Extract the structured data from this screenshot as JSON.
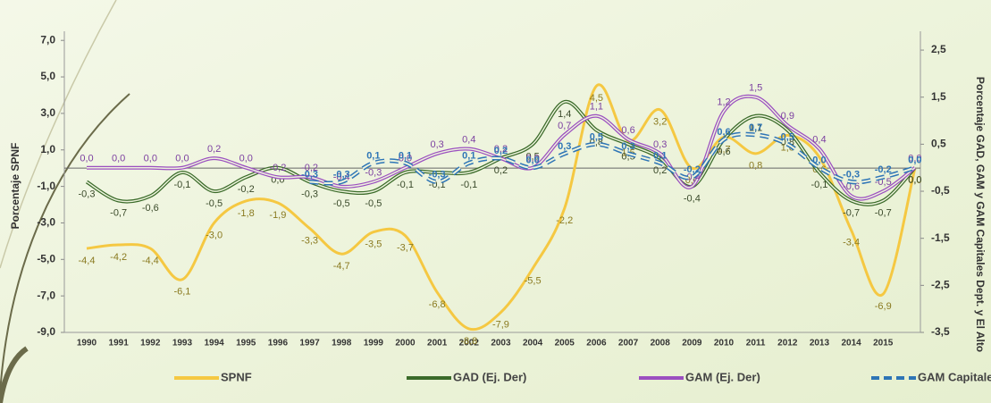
{
  "chart_data": {
    "type": "line",
    "y_label": "Porcentaje SPNF",
    "y2_label": "Porcentaje GAD, GAM y GAM  Capitales Dept. y El Alto",
    "categories": [
      "1990",
      "1991",
      "1992",
      "1993",
      "1994",
      "1995",
      "1996",
      "1997",
      "1998",
      "1999",
      "2000",
      "2001",
      "2002",
      "2003",
      "2004",
      "2005",
      "2006",
      "2007",
      "2008",
      "2009",
      "2010",
      "2011",
      "2012",
      "2013",
      "2014",
      "2015",
      null
    ],
    "ylim": [
      -9,
      7.5
    ],
    "yticks": [
      {
        "value": -9,
        "label": "-9,0"
      },
      {
        "value": -7,
        "label": "-7,0"
      },
      {
        "value": -5,
        "label": "-5,0"
      },
      {
        "value": -3,
        "label": "-3,0"
      },
      {
        "value": -1,
        "label": "-1,0"
      },
      {
        "value": 1,
        "label": "1,0"
      },
      {
        "value": 3,
        "label": "3,0"
      },
      {
        "value": 5,
        "label": "5,0"
      },
      {
        "value": 7,
        "label": "7,0"
      }
    ],
    "y2lim": [
      -3.5,
      2.9
    ],
    "y2ticks": [
      {
        "value": -3.5,
        "label": "-3,5"
      },
      {
        "value": -2.5,
        "label": "-2,5"
      },
      {
        "value": -1.5,
        "label": "-1,5"
      },
      {
        "value": -0.5,
        "label": "-0,5"
      },
      {
        "value": 0.5,
        "label": "0,5"
      },
      {
        "value": 1.5,
        "label": "1,5"
      },
      {
        "value": 2.5,
        "label": "2,5"
      }
    ],
    "series": [
      {
        "name": "SPNF",
        "color": "#f5c842",
        "axis": "y",
        "values": [
          -4.4,
          -4.2,
          -4.4,
          -6.1,
          -3.0,
          -1.8,
          -1.9,
          -3.3,
          -4.7,
          -3.5,
          -3.7,
          -6.8,
          -8.8,
          -7.9,
          -5.5,
          -2.2,
          4.5,
          1.5,
          3.2,
          0.0,
          1.7,
          0.8,
          1.8,
          0.6,
          -3.4,
          -6.9,
          0.0
        ],
        "value_labels": [
          "-4,4",
          "-4,2",
          "-4,4",
          "-6,1",
          "-3,0",
          "-1,8",
          "-1,9",
          "-3,3",
          "-4,7",
          "-3,5",
          "-3,7",
          "-6,8",
          "-8,8",
          "-7,9",
          "-5,5",
          "-2,2",
          "4,5",
          "1,5",
          "3,2",
          "0,0",
          "1,7",
          "0,8",
          "1,8",
          "0,6",
          "-3,4",
          "-6,9",
          "0,0"
        ]
      },
      {
        "name": "GAD (Ej. Der)",
        "color": "#3b6b2a",
        "axis": "y2",
        "values": [
          -0.3,
          -0.7,
          -0.6,
          -0.1,
          -0.5,
          -0.2,
          0.0,
          -0.3,
          -0.5,
          -0.5,
          -0.1,
          -0.1,
          -0.1,
          0.2,
          0.5,
          1.4,
          0.8,
          0.5,
          0.2,
          -0.4,
          0.6,
          1.1,
          0.8,
          -0.1,
          -0.7,
          -0.7,
          0.0
        ],
        "value_labels": [
          "-0,3",
          "-0,7",
          "-0,6",
          "-0,1",
          "-0,5",
          "-0,2",
          "0,0",
          "-0,3",
          "-0,5",
          "-0,5",
          "-0,1",
          "-0,1",
          "-0,1",
          "0,2",
          "0,5",
          "1,4",
          "0,8",
          "0,5",
          "0,2",
          "-0,4",
          "0,6",
          "1,1",
          "0,8",
          "-0,1",
          "-0,7",
          "-0,7",
          "0,0"
        ]
      },
      {
        "name": "GAM (Ej. Der)",
        "color": "#9b4fc0",
        "axis": "y2",
        "values": [
          0.0,
          0.0,
          0.0,
          0.0,
          0.2,
          0.0,
          -0.2,
          -0.2,
          -0.4,
          -0.3,
          0.0,
          0.3,
          0.4,
          0.2,
          0.0,
          0.7,
          1.1,
          0.6,
          0.3,
          -0.4,
          1.2,
          1.5,
          0.9,
          0.4,
          -0.6,
          -0.5,
          0.0
        ],
        "value_labels": [
          "0,0",
          "0,0",
          "0,0",
          "0,0",
          "0,2",
          "0,0",
          "-0,2",
          "-0,2",
          "-0,4",
          "-0,3",
          "0,0",
          "0,3",
          "0,4",
          "0,2",
          "0,0",
          "0,7",
          "1,1",
          "0,6",
          "0,3",
          "-0,4",
          "1,2",
          "1,5",
          "0,9",
          "0,4",
          "-0,6",
          "-0,5",
          "0,0"
        ]
      },
      {
        "name": "GAM Capitales (Ej. Der)",
        "color": "#2e75b6",
        "axis": "y2",
        "dashed": true,
        "values": [
          null,
          null,
          null,
          null,
          null,
          null,
          null,
          -0.3,
          -0.3,
          0.1,
          0.1,
          -0.3,
          0.1,
          0.2,
          0.0,
          0.3,
          0.5,
          0.3,
          0.1,
          -0.2,
          0.6,
          0.7,
          0.5,
          0.0,
          -0.3,
          -0.2,
          0.0
        ],
        "value_labels": [
          null,
          null,
          null,
          null,
          null,
          null,
          null,
          "-0,3",
          "-0,3",
          "0,1",
          "0,1",
          "-0,3",
          "0,1",
          "0,2",
          "0,0",
          "0,3",
          "0,5",
          "0,3",
          "0,1",
          "-0,2",
          "0,6",
          "0,7",
          "0,5",
          "0,0",
          "-0,3",
          "-0,2",
          "0,0"
        ]
      }
    ],
    "legend": "bottom"
  }
}
